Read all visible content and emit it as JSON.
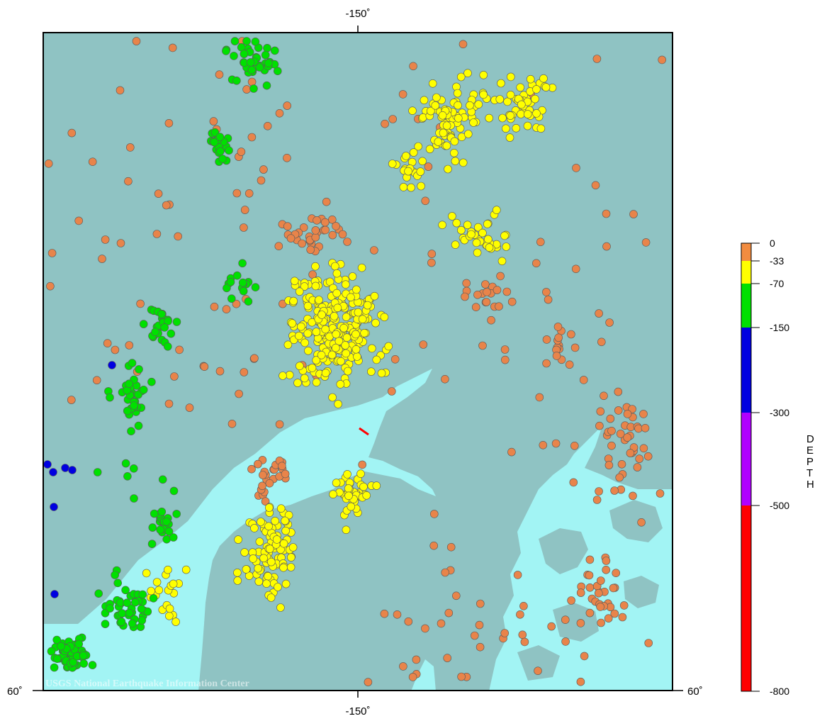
{
  "map": {
    "top_tick_label": "-150˚",
    "bottom_tick_label": "-150˚",
    "left_lat_label": "60˚",
    "right_lat_label": "60˚",
    "credit": "USGS National Earthquake Information Center"
  },
  "colors": {
    "land": "#8fc3c3",
    "water": "#a2f4f4",
    "frame": "#000000",
    "dot_outline": "#5a5a5a",
    "fault_marker": "#ff0000"
  },
  "depth_scale": {
    "title": "DEPTH",
    "ticks": [
      "0",
      "-33",
      "-70",
      "-150",
      "-300",
      "-500",
      "-800"
    ],
    "bands": [
      {
        "from": "0",
        "to": "-33",
        "color": "#f28c40"
      },
      {
        "from": "-33",
        "to": "-70",
        "color": "#ffff00"
      },
      {
        "from": "-70",
        "to": "-150",
        "color": "#00e000"
      },
      {
        "from": "-150",
        "to": "-300",
        "color": "#0000e0"
      },
      {
        "from": "-300",
        "to": "-500",
        "color": "#b000ff"
      },
      {
        "from": "-500",
        "to": "-800",
        "color": "#ff0000"
      }
    ]
  },
  "events": {
    "categories": [
      "0 to -33",
      "-33 to -70",
      "-70 to -150",
      "-150 to -300"
    ],
    "colors": {
      "shallow": "#e8844a",
      "intermediate": "#ffff00",
      "deep": "#00e000",
      "very_deep": "#0000e0"
    }
  }
}
